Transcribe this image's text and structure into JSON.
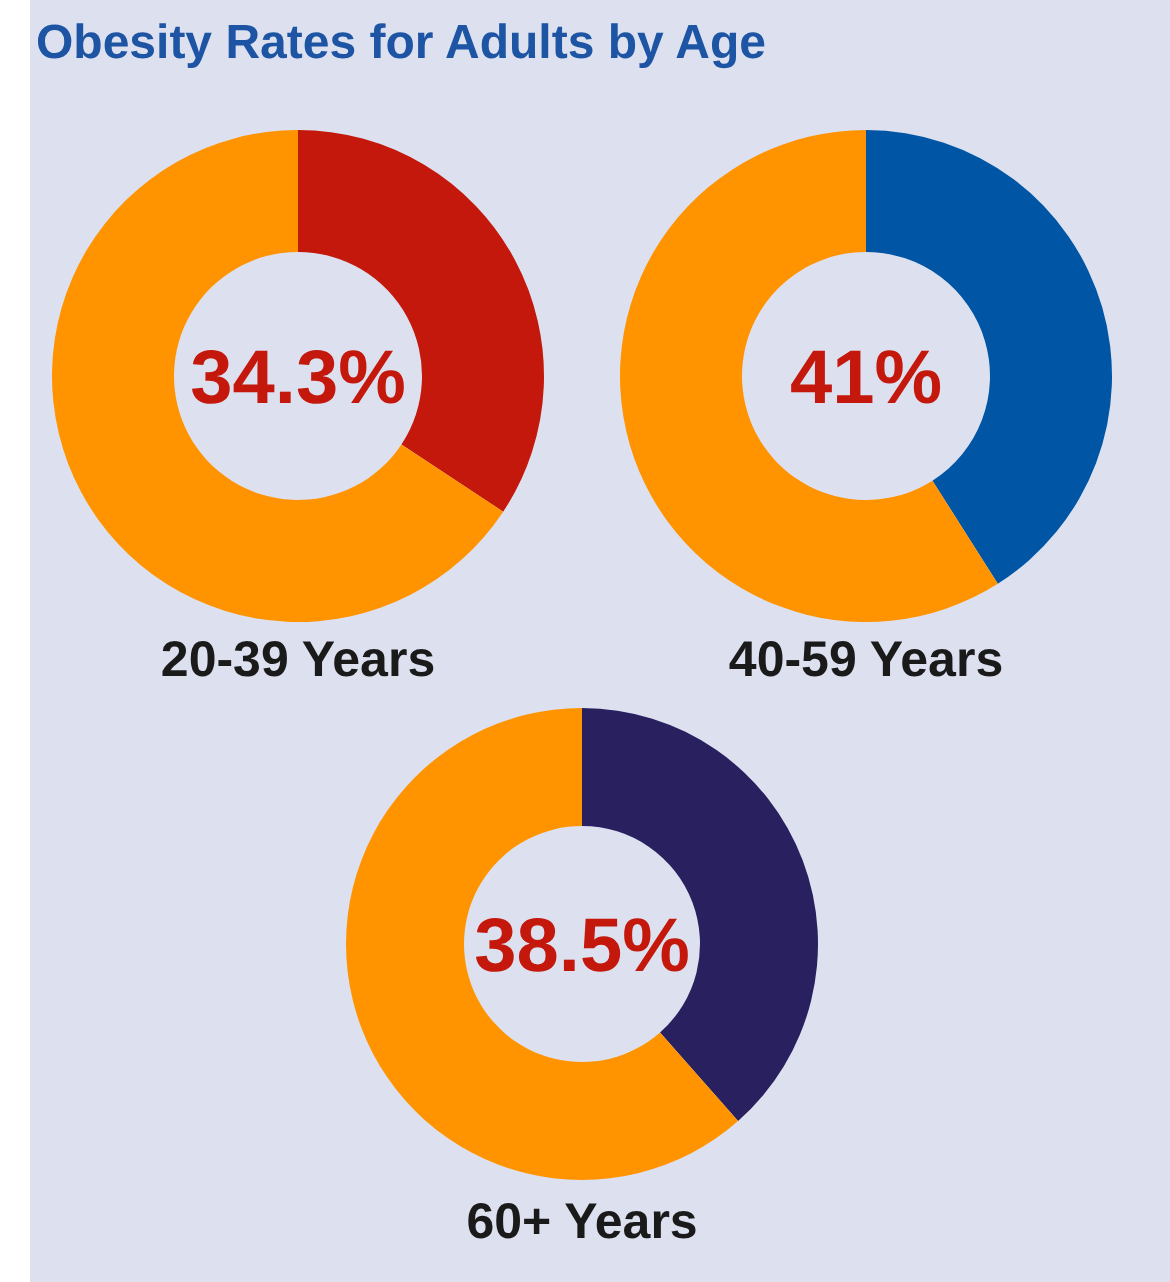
{
  "chart_data": [
    {
      "type": "donut",
      "title": "Obesity Rates for Adults by Age",
      "xlabel": "20-39 Years",
      "categories": [
        null,
        null
      ],
      "values": [
        34.3,
        65.7
      ],
      "colors": [
        "#c3180b",
        "#ff9300"
      ],
      "annotations": [
        "34.3%"
      ]
    },
    {
      "type": "donut",
      "xlabel": "40-59 Years",
      "categories": [
        null,
        null
      ],
      "values": [
        41,
        59
      ],
      "colors": [
        "#0055a5",
        "#ff9300"
      ],
      "annotations": [
        "41%"
      ]
    },
    {
      "type": "donut",
      "xlabel": "60+ Years",
      "categories": [
        null,
        null
      ],
      "values": [
        38.5,
        61.5
      ],
      "colors": [
        "#28205f",
        "#ff9300"
      ],
      "annotations": [
        "38.5%"
      ]
    }
  ]
}
